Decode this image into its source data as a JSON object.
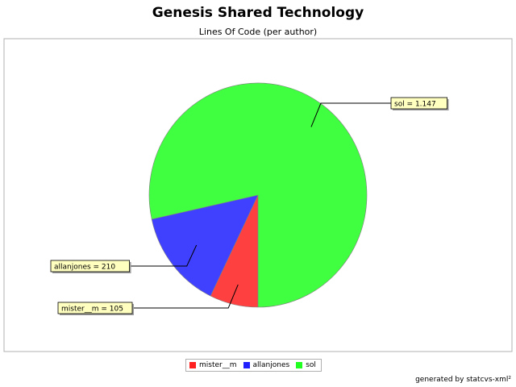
{
  "chart_data": {
    "type": "pie",
    "title": "Genesis Shared Technology",
    "subtitle": "Lines Of Code (per author)",
    "slices": [
      {
        "name": "mister__m",
        "value": 105,
        "label": "mister__m = 105",
        "color": "#ff4040"
      },
      {
        "name": "allanjones",
        "value": 210,
        "label": "allanjones = 210",
        "color": "#4040ff"
      },
      {
        "name": "sol",
        "value": 1147,
        "label": "sol = 1.147",
        "color": "#40ff40"
      }
    ],
    "legend_position": "bottom",
    "footer": "generated by statcvs-xml²"
  }
}
